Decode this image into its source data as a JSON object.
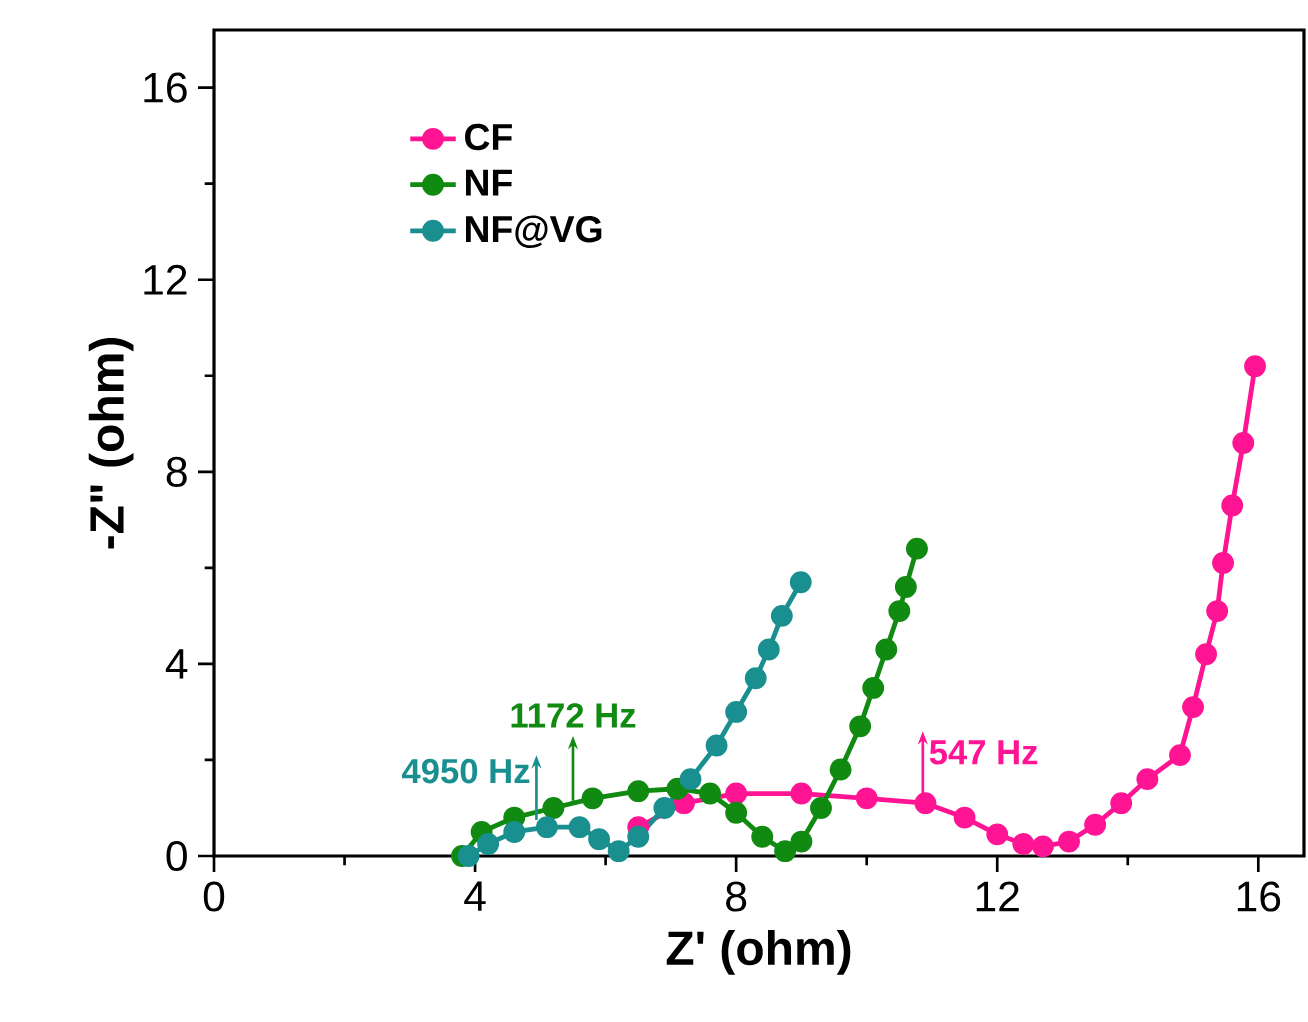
{
  "chart_data": {
    "type": "line",
    "xlabel": "Z' (ohm)",
    "ylabel": "-Z\" (ohm)",
    "xlim": [
      0,
      16.7
    ],
    "ylim": [
      0,
      17.2
    ],
    "xticks": [
      0,
      4,
      8,
      12,
      16
    ],
    "yticks": [
      0,
      4,
      8,
      12,
      16
    ],
    "marker": "circle",
    "line_style": "solid",
    "legend": "top left",
    "grid": false,
    "series": [
      {
        "name": "CF",
        "color": "#ff1493",
        "x": [
          6.5,
          7.2,
          8.0,
          9.0,
          10.0,
          10.9,
          11.5,
          12.0,
          12.4,
          12.7,
          13.1,
          13.5,
          13.9,
          14.3,
          14.8,
          15.0,
          15.2,
          15.37,
          15.46,
          15.6,
          15.77,
          15.95
        ],
        "values": [
          0.6,
          1.1,
          1.3,
          1.3,
          1.2,
          1.1,
          0.8,
          0.45,
          0.25,
          0.2,
          0.3,
          0.65,
          1.1,
          1.6,
          2.1,
          3.1,
          4.2,
          5.1,
          6.1,
          7.3,
          8.6,
          10.2
        ]
      },
      {
        "name": "NF",
        "color": "#108a10",
        "x": [
          3.8,
          4.1,
          4.6,
          5.2,
          5.8,
          6.5,
          7.1,
          7.6,
          8.0,
          8.4,
          8.75,
          9.0,
          9.3,
          9.6,
          9.9,
          10.1,
          10.3,
          10.5,
          10.6,
          10.77
        ],
        "values": [
          0.0,
          0.5,
          0.8,
          1.0,
          1.2,
          1.35,
          1.4,
          1.3,
          0.9,
          0.4,
          0.1,
          0.3,
          1.0,
          1.8,
          2.7,
          3.5,
          4.3,
          5.1,
          5.6,
          6.4
        ]
      },
      {
        "name": "NF@VG",
        "color": "#1a8f8f",
        "x": [
          3.9,
          4.2,
          4.6,
          5.1,
          5.6,
          5.9,
          6.2,
          6.5,
          6.9,
          7.3,
          7.7,
          8.0,
          8.3,
          8.5,
          8.7,
          8.99
        ],
        "values": [
          0.0,
          0.25,
          0.5,
          0.6,
          0.6,
          0.35,
          0.1,
          0.4,
          1.0,
          1.6,
          2.3,
          3.0,
          3.7,
          4.3,
          5.0,
          5.7
        ]
      }
    ],
    "annotations": [
      {
        "text": "547 Hz",
        "x": 10.86,
        "y": 1.25
      },
      {
        "text": "1172 Hz",
        "x": 5.5,
        "y": 1.15
      },
      {
        "text": "4950 Hz",
        "x": 4.94,
        "y": 0.75
      }
    ]
  }
}
